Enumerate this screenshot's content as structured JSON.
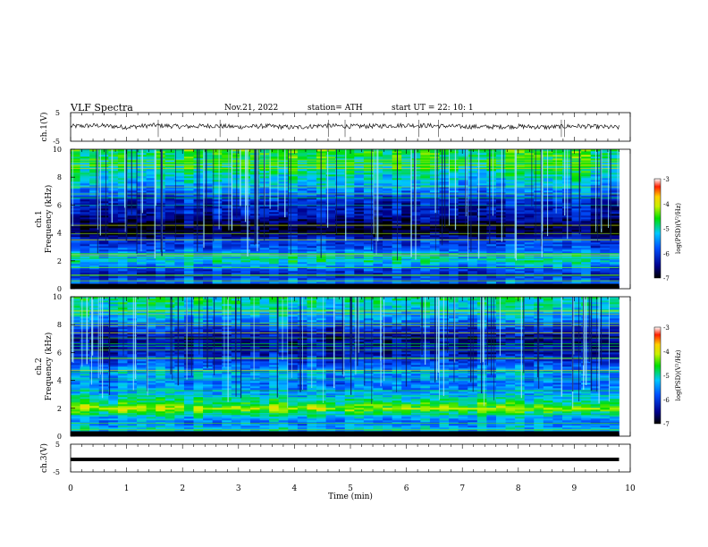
{
  "header": {
    "title": "VLF  Spectra",
    "date": "Nov.21, 2022",
    "station": "station= ATH",
    "start": "start  UT  =    22: 10: 1"
  },
  "chart_data": [
    {
      "type": "line",
      "name": "ch1-waveform",
      "ylabel": "ch.1(V)",
      "ylim": [
        -5,
        5
      ],
      "yticks": [
        "5",
        "-5"
      ],
      "xlim": [
        0,
        10
      ],
      "x": [
        0,
        0.5,
        1,
        1.5,
        2,
        2.5,
        3,
        3.5,
        4,
        4.5,
        5,
        5.5,
        6,
        6.5,
        7,
        7.5,
        8,
        8.5,
        9,
        9.5,
        9.8
      ],
      "y": [
        0.2,
        0.5,
        -0.1,
        0.6,
        0.1,
        0.4,
        0.0,
        0.3,
        -0.2,
        0.5,
        0.2,
        0.3,
        0.6,
        0.4,
        0.1,
        0.0,
        0.2,
        -0.1,
        0.3,
        0.0,
        -0.2
      ]
    },
    {
      "type": "heatmap",
      "name": "ch1-spectrogram",
      "ylabel": "ch.1\nFrequency  (kHz)",
      "ylim": [
        0,
        10
      ],
      "yticks": [
        "0",
        "2",
        "4",
        "6",
        "8",
        "10"
      ],
      "xlim": [
        0,
        10
      ],
      "data_end_min": 9.8,
      "colorbar": {
        "label": "log(PSD)(V²/Hz)",
        "range": [
          -7,
          -3
        ],
        "ticks": [
          "-3",
          "-4",
          "-5",
          "-6",
          "-7"
        ]
      },
      "band_profile_freq_khz": [
        0,
        0.5,
        1,
        1.5,
        2,
        2.5,
        3,
        3.5,
        4,
        4.5,
        5,
        5.5,
        6,
        6.5,
        7,
        7.5,
        8,
        8.5,
        9,
        9.5,
        10
      ],
      "band_profile_logpsd": [
        -6.0,
        -5.6,
        -6.2,
        -5.8,
        -5.0,
        -5.4,
        -5.9,
        -6.0,
        -6.8,
        -6.9,
        -6.5,
        -6.2,
        -6.3,
        -6.0,
        -5.6,
        -5.3,
        -5.1,
        -4.9,
        -4.8,
        -4.7,
        -4.6
      ]
    },
    {
      "type": "heatmap",
      "name": "ch2-spectrogram",
      "ylabel": "ch.2\nFrequency  (kHz)",
      "ylim": [
        0,
        10
      ],
      "yticks": [
        "0",
        "2",
        "4",
        "6",
        "8",
        "10"
      ],
      "xlim": [
        0,
        10
      ],
      "data_end_min": 9.8,
      "colorbar": {
        "label": "log(PSD)(V²/Hz)",
        "range": [
          -7,
          -3
        ],
        "ticks": [
          "-3",
          "-4",
          "-5",
          "-6",
          "-7"
        ]
      },
      "band_profile_freq_khz": [
        0,
        0.5,
        1,
        1.5,
        2,
        2.5,
        3,
        3.5,
        4,
        4.5,
        5,
        5.5,
        6,
        6.5,
        7,
        7.5,
        8,
        8.5,
        9,
        9.5,
        10
      ],
      "band_profile_logpsd": [
        -6.0,
        -5.2,
        -5.6,
        -5.1,
        -4.2,
        -4.9,
        -5.3,
        -5.5,
        -5.6,
        -5.4,
        -5.7,
        -6.0,
        -6.3,
        -6.4,
        -6.5,
        -6.2,
        -5.8,
        -5.4,
        -5.2,
        -5.0,
        -4.9
      ]
    },
    {
      "type": "line",
      "name": "ch3-waveform",
      "ylabel": "ch.3(V)",
      "ylim": [
        -5,
        5
      ],
      "yticks": [
        "5",
        "-5"
      ],
      "xlim": [
        0,
        10
      ],
      "xlabel": "Time  (min)",
      "xticks": [
        "0",
        "1",
        "2",
        "3",
        "4",
        "5",
        "6",
        "7",
        "8",
        "9",
        "10"
      ],
      "x": [
        0,
        9.8
      ],
      "y": [
        -0.5,
        -0.5
      ]
    }
  ]
}
